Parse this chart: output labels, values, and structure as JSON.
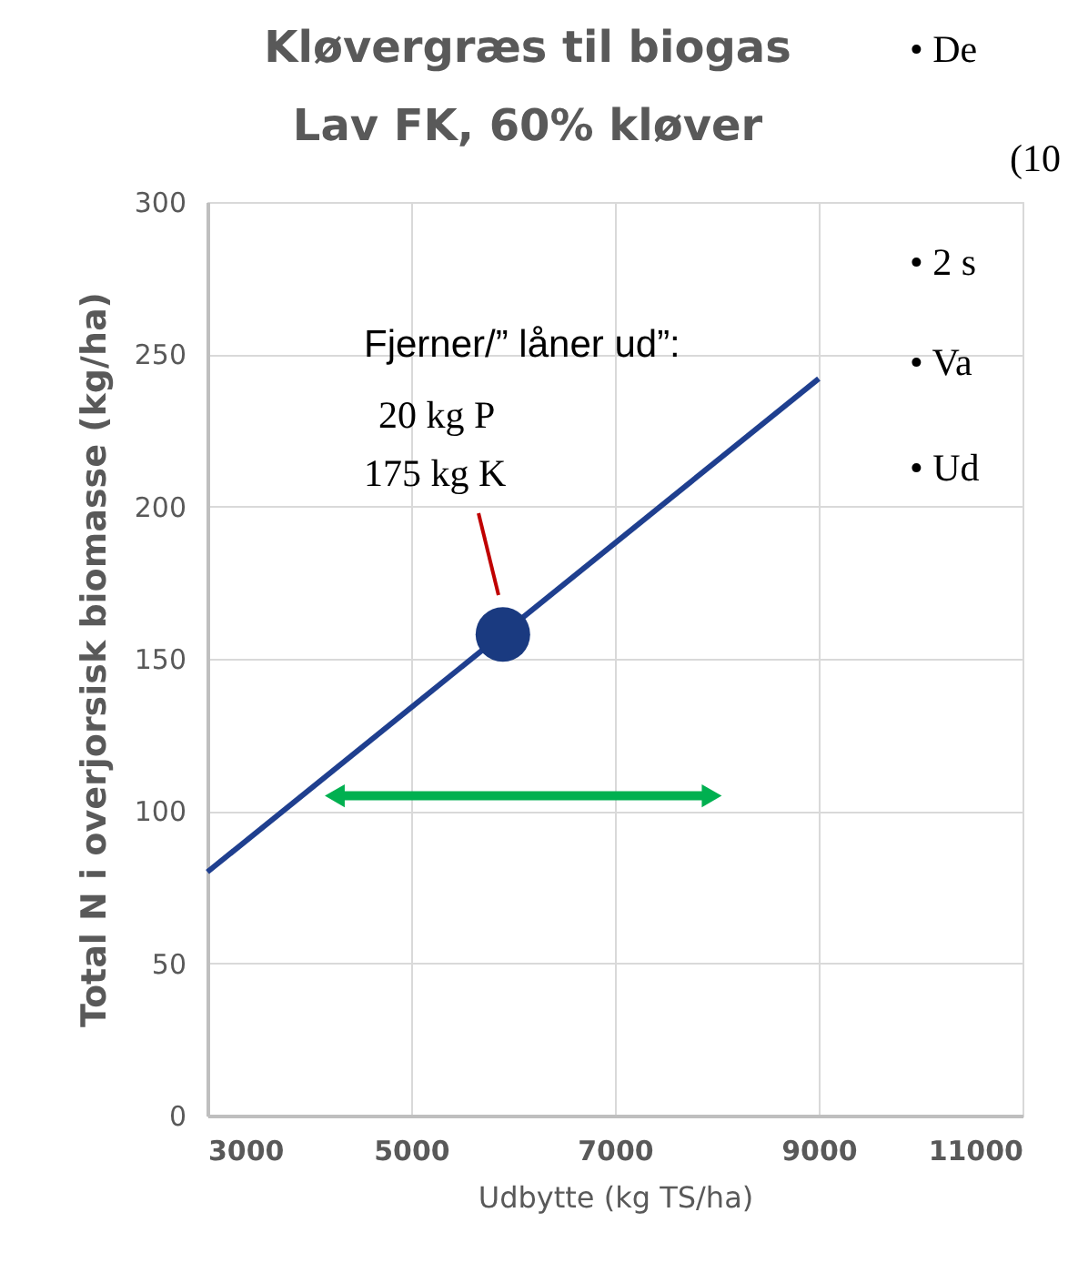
{
  "chart_data": {
    "type": "line",
    "title": "Kløvergræs til biogas\nLav FK, 60% kløver",
    "xlabel": "Udbytte (kg TS/ha)",
    "ylabel": "Total N i overjorsisk biomasse (kg/ha)",
    "series": [
      {
        "type": "line",
        "color": "#1f3f8f",
        "x": [
          3000,
          9000
        ],
        "values": [
          80,
          242
        ]
      },
      {
        "type": "scatter",
        "color": "#1a3a80",
        "x": [
          5900
        ],
        "values": [
          158
        ],
        "marker": "circle"
      },
      {
        "type": "line",
        "color": "#00b050",
        "x": [
          4250,
          7950
        ],
        "values": [
          105,
          105
        ],
        "marker": "triangle"
      }
    ],
    "annotations": [
      "Fjerner/” låner ud”:\n20 kg P\n175 kg K",
      "•   De",
      "(10",
      "•   2 s",
      "•   Va",
      "•   Ud"
    ],
    "xlim": [
      3000,
      11000
    ],
    "xticks": [
      3000,
      5000,
      7000,
      9000,
      11000
    ],
    "ylim": [
      0,
      300
    ],
    "yticks": [
      0,
      50,
      100,
      150,
      200,
      250,
      300
    ],
    "grid": true
  }
}
